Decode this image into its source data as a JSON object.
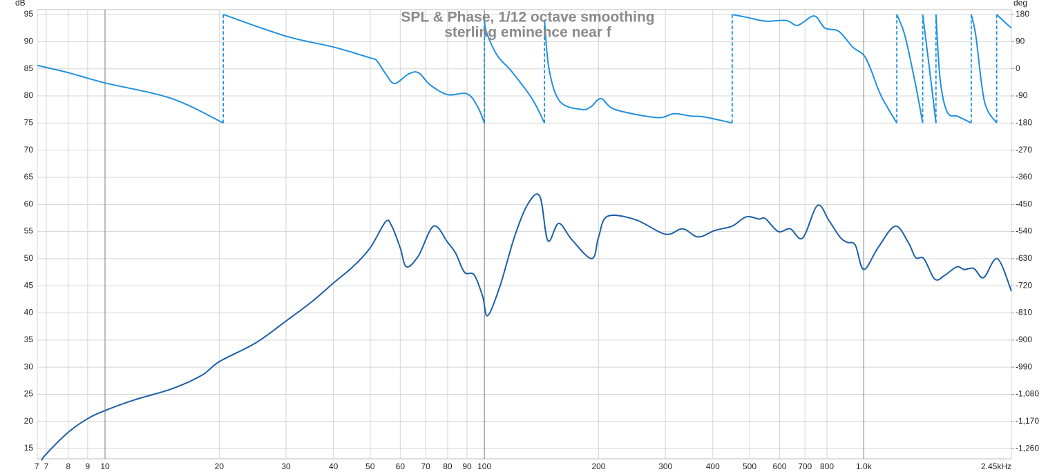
{
  "chart_data": {
    "type": "line",
    "title": "SPL & Phase, 1/12 octave smoothing",
    "subtitle": "sterling eminence near f",
    "y_label": "dB",
    "y2_label": "deg",
    "log_x": true,
    "grid": true,
    "xlim": [
      6.63,
      2450
    ],
    "ylim": [
      13.1,
      95.9
    ],
    "y2lim": [
      -1294,
      196
    ],
    "xticks": [
      {
        "value": 6.63,
        "label": "7"
      },
      7,
      8,
      9,
      10,
      20,
      30,
      40,
      50,
      60,
      70,
      80,
      90,
      100,
      200,
      300,
      400,
      500,
      600,
      700,
      800,
      {
        "value": 1000,
        "label": "1.0k"
      },
      {
        "value": 2450,
        "label": "2.45kHz"
      }
    ],
    "yticks": [
      15,
      20,
      25,
      30,
      35,
      40,
      45,
      50,
      55,
      60,
      65,
      70,
      75,
      80,
      85,
      90,
      95
    ],
    "y2ticks": [
      {
        "value": -1260,
        "label": "-1,260"
      },
      {
        "value": -1170,
        "label": "-1,170"
      },
      {
        "value": -1080,
        "label": "-1,080"
      },
      -990,
      -900,
      -810,
      -720,
      -630,
      -540,
      -450,
      -360,
      -270,
      -180,
      -90,
      0,
      90,
      180
    ],
    "series": [
      {
        "name": "SPL",
        "color": "#1c5fa6",
        "x": [
          6.8,
          7,
          8,
          9,
          10,
          12,
          15,
          18,
          20,
          25,
          30,
          35,
          40,
          45,
          50,
          54.9,
          57,
          60,
          62.3,
          67,
          73.5,
          80,
          84,
          88.6,
          94,
          99,
          102,
          110,
          120,
          130,
          140,
          147,
          157,
          170,
          192,
          200,
          211,
          250,
          300,
          333,
          366,
          405,
          450,
          490,
          530,
          550,
          595,
          640,
          690,
          755,
          810,
          865,
          905,
          950,
          1000,
          1090,
          1210,
          1310,
          1370,
          1440,
          1540,
          1640,
          1760,
          1840,
          1950,
          2070,
          2250,
          2450
        ],
        "values": [
          12.8,
          14,
          18,
          20.5,
          22,
          24,
          26,
          28.5,
          31,
          34.5,
          38.5,
          42,
          45.5,
          48.5,
          52,
          56.8,
          56,
          52,
          48.5,
          50.5,
          56,
          53,
          51,
          47.5,
          47,
          43,
          39.5,
          45,
          54,
          60,
          61.5,
          53.3,
          56.5,
          53.5,
          50,
          54,
          57.8,
          57.2,
          54.5,
          55.5,
          54,
          55.2,
          56,
          57.7,
          57.3,
          57.4,
          55,
          55.5,
          53.8,
          59.8,
          57,
          54,
          53,
          52.5,
          48,
          52,
          56,
          53,
          50.2,
          50,
          46.2,
          47,
          48.5,
          48,
          48.2,
          46.5,
          50,
          44
        ]
      },
      {
        "name": "Phase",
        "color": "#1e90e0",
        "axis": "y2",
        "x": [
          6.63,
          8,
          10,
          15,
          20.5,
          20.5,
          30,
          40,
          50,
          52,
          55,
          58,
          63,
          67,
          72,
          80,
          90,
          96,
          100,
          100,
          101,
          108,
          118,
          133.5,
          144,
          144,
          148,
          158,
          180,
          191,
          203,
          221,
          285,
          316,
          350,
          380,
          450,
          450,
          490,
          550,
          625,
          670,
          740,
          790,
          860,
          935,
          1000,
          1042,
          1111,
          1222,
          1222,
          1285,
          1370,
          1430,
          1430,
          1490,
          1550,
          1550,
          1590,
          1660,
          1770,
          1920,
          1920,
          1975,
          2080,
          2240,
          2240,
          2360,
          2450
        ],
        "values": [
          11,
          -13,
          -47,
          -99,
          -180,
          180,
          108,
          72,
          36,
          27,
          -18,
          -49,
          -18,
          -13,
          -54,
          -86,
          -83,
          -126,
          -180,
          180,
          126,
          45,
          -9,
          -99,
          -180,
          162,
          0,
          -108,
          -135,
          -126,
          -99,
          -135,
          -162,
          -149,
          -157,
          -160,
          -180,
          180,
          171,
          158,
          160,
          144,
          175,
          135,
          124,
          72,
          45,
          0,
          -90,
          -180,
          180,
          108,
          -54,
          -180,
          180,
          0,
          -180,
          180,
          -36,
          -144,
          -158,
          -180,
          180,
          108,
          -108,
          -180,
          180,
          153,
          135
        ]
      }
    ]
  }
}
